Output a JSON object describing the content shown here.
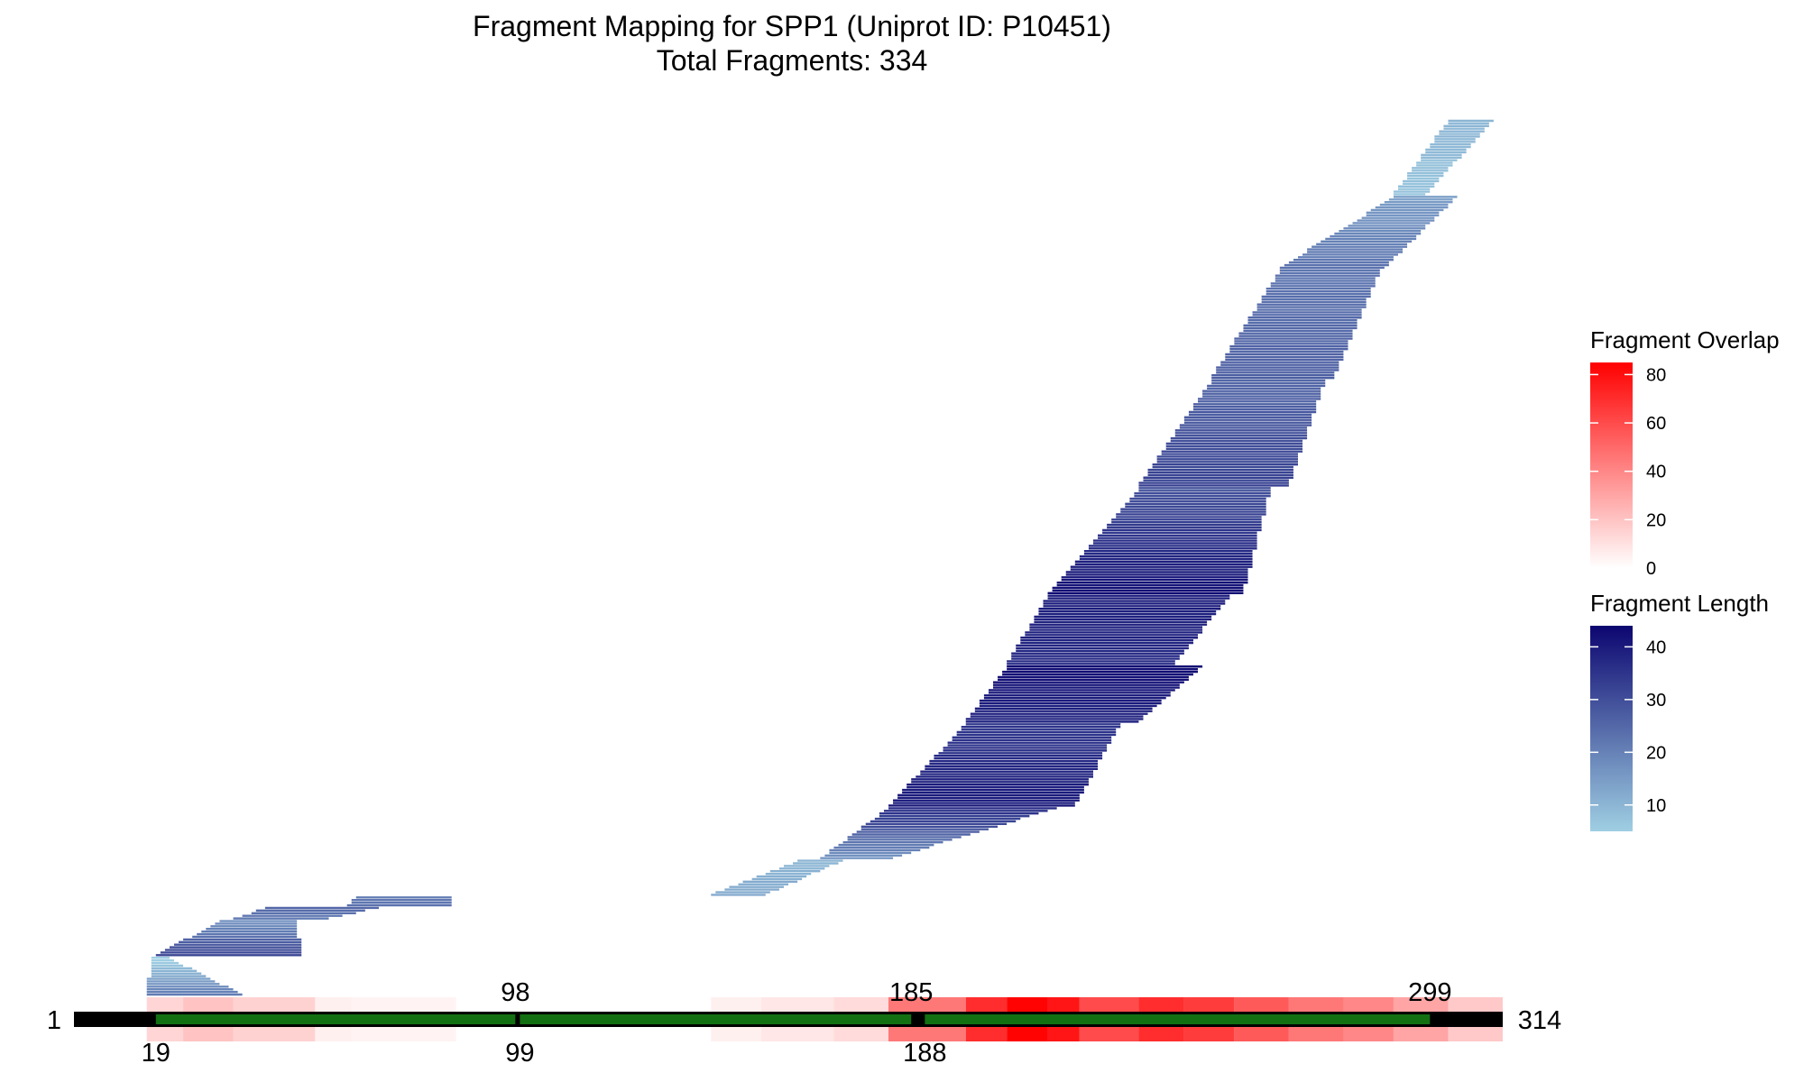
{
  "chart_data": {
    "type": "fragment-map",
    "title": "Fragment Mapping for SPP1 (Uniprot ID: P10451)",
    "subtitle": "Total Fragments: 334",
    "sequence_length": 314,
    "sequence_start": 1,
    "sequence_end": 314,
    "domains": [
      {
        "start": 19,
        "end": 98,
        "color": "#127012"
      },
      {
        "start": 99,
        "end": 185,
        "color": "#127012"
      },
      {
        "start": 188,
        "end": 299,
        "color": "#127012"
      }
    ],
    "position_labels_top": [
      98,
      185,
      299
    ],
    "position_labels_bottom": [
      19,
      99,
      188
    ],
    "fragment_bands": [
      {
        "count": 15,
        "s0": 17,
        "s1": 18,
        "e0": 40,
        "e1": 24
      },
      {
        "count": 14,
        "s0": 19,
        "s1": 33,
        "e0": 53,
        "e1": 52
      },
      {
        "count": 5,
        "s0": 36,
        "s1": 43,
        "e0": 57,
        "e1": 68
      },
      {
        "count": 4,
        "s0": 61,
        "s1": 63,
        "e0": 84,
        "e1": 84
      },
      {
        "count": 14,
        "s0": 141,
        "s1": 160,
        "e0": 151,
        "e1": 168
      },
      {
        "count": 20,
        "s0": 165,
        "s1": 180,
        "e0": 182,
        "e1": 218
      },
      {
        "count": 32,
        "s0": 180,
        "s1": 197,
        "e0": 222,
        "e1": 232
      },
      {
        "count": 22,
        "s0": 197,
        "s1": 206,
        "e0": 235,
        "e1": 249
      },
      {
        "count": 27,
        "s0": 206,
        "s1": 215,
        "e0": 242,
        "e1": 254
      },
      {
        "count": 41,
        "s0": 215,
        "s1": 235,
        "e0": 256,
        "e1": 262
      },
      {
        "count": 41,
        "s0": 235,
        "s1": 251,
        "e0": 268,
        "e1": 276
      },
      {
        "count": 42,
        "s0": 251,
        "s1": 266,
        "e0": 280,
        "e1": 290
      },
      {
        "count": 28,
        "s0": 266,
        "s1": 291,
        "e0": 290,
        "e1": 306
      },
      {
        "count": 29,
        "s0": 291,
        "s1": 303,
        "e0": 300,
        "e1": 315
      }
    ],
    "overlap_profile": [
      {
        "start": 1,
        "end": 17,
        "value": 0
      },
      {
        "start": 17,
        "end": 25,
        "value": 14
      },
      {
        "start": 25,
        "end": 36,
        "value": 20
      },
      {
        "start": 36,
        "end": 54,
        "value": 15
      },
      {
        "start": 54,
        "end": 62,
        "value": 5
      },
      {
        "start": 62,
        "end": 85,
        "value": 4
      },
      {
        "start": 85,
        "end": 141,
        "value": 0
      },
      {
        "start": 141,
        "end": 152,
        "value": 5
      },
      {
        "start": 152,
        "end": 168,
        "value": 8
      },
      {
        "start": 168,
        "end": 180,
        "value": 12
      },
      {
        "start": 180,
        "end": 197,
        "value": 45
      },
      {
        "start": 197,
        "end": 206,
        "value": 70
      },
      {
        "start": 206,
        "end": 215,
        "value": 84
      },
      {
        "start": 215,
        "end": 222,
        "value": 78
      },
      {
        "start": 222,
        "end": 235,
        "value": 60
      },
      {
        "start": 235,
        "end": 245,
        "value": 70
      },
      {
        "start": 245,
        "end": 256,
        "value": 65
      },
      {
        "start": 256,
        "end": 268,
        "value": 55
      },
      {
        "start": 268,
        "end": 280,
        "value": 45
      },
      {
        "start": 280,
        "end": 291,
        "value": 40
      },
      {
        "start": 291,
        "end": 303,
        "value": 30
      },
      {
        "start": 303,
        "end": 315,
        "value": 18
      }
    ],
    "legends": [
      {
        "title": "Fragment Overlap",
        "min": 0,
        "max": 85,
        "ticks": [
          0,
          20,
          40,
          60,
          80
        ],
        "low_color": "#ffffff",
        "high_color": "#ff0000"
      },
      {
        "title": "Fragment Length",
        "min": 5,
        "max": 44,
        "ticks": [
          10,
          20,
          30,
          40
        ],
        "low_color": "#9fcfe3",
        "high_color": "#0c0670"
      }
    ],
    "sequence_bar_color": "#000000"
  }
}
